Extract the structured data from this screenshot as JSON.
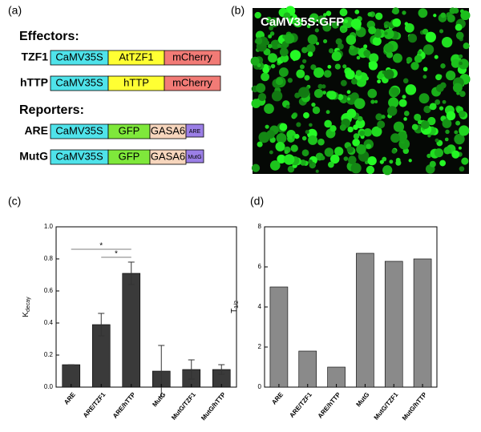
{
  "panel_a": {
    "label": "(a)",
    "groups": [
      {
        "title": "Effectors:",
        "constructs": [
          {
            "name": "TZF1",
            "segments": [
              {
                "text": "CaMV35S",
                "color": "#4fe3ea"
              },
              {
                "text": "AtTZF1",
                "color": "#ffff33"
              },
              {
                "text": "mCherry",
                "color": "#f27b76"
              }
            ]
          },
          {
            "name": "hTTP",
            "segments": [
              {
                "text": "CaMV35S",
                "color": "#4fe3ea"
              },
              {
                "text": "hTTP",
                "color": "#ffff33"
              },
              {
                "text": "mCherry",
                "color": "#f27b76"
              }
            ]
          }
        ]
      },
      {
        "title": "Reporters:",
        "constructs": [
          {
            "name": "ARE",
            "segments": [
              {
                "text": "CaMV35S",
                "color": "#4fe3ea"
              },
              {
                "text": "GFP",
                "color": "#7fe83b"
              },
              {
                "text": "GASA6",
                "color": "#f7d6bd"
              },
              {
                "text": "ARE",
                "color": "#9b7fe6"
              }
            ]
          },
          {
            "name": "MutG",
            "segments": [
              {
                "text": "CaMV35S",
                "color": "#4fe3ea"
              },
              {
                "text": "GFP",
                "color": "#7fe83b"
              },
              {
                "text": "GASA6",
                "color": "#f7d6bd"
              },
              {
                "text": "MutG",
                "color": "#9b7fe6"
              }
            ]
          }
        ]
      }
    ]
  },
  "panel_b": {
    "label": "(b)",
    "caption": "CaMV35S:GFP"
  },
  "chart_data": [
    {
      "type": "bar",
      "label": "(c)",
      "ylabel": "K",
      "ylabel_sub": "decay",
      "categories": [
        "ARE",
        "ARE/TZF1",
        "ARE/hTTP",
        "MutG",
        "MutG/TZF1",
        "MutG/hTTP"
      ],
      "values": [
        0.14,
        0.39,
        0.71,
        0.1,
        0.11,
        0.11
      ],
      "errors": [
        0.0,
        0.07,
        0.07,
        0.16,
        0.06,
        0.03
      ],
      "color": "#3a3a3a",
      "ylim": [
        0,
        1
      ],
      "yticks": [
        {
          "value": 0,
          "label": "0.0"
        },
        0.2,
        0.4,
        0.6,
        0.8,
        {
          "value": 1,
          "label": "1.0"
        }
      ],
      "significance": [
        {
          "label": "*",
          "between": [
            "ARE",
            "ARE/hTTP"
          ]
        },
        {
          "label": "*",
          "between": [
            "ARE/TZF1",
            "ARE/hTTP"
          ]
        }
      ]
    },
    {
      "type": "bar",
      "label": "(d)",
      "ylabel": "T",
      "ylabel_sub": "1/2",
      "categories": [
        "ARE",
        "ARE/TZF1",
        "ARE/hTTP",
        "MutG",
        "MutG/TZF1",
        "MutG/hTTP"
      ],
      "values": [
        5.0,
        1.8,
        1.0,
        6.68,
        6.28,
        6.4
      ],
      "color": "#8a8a8a",
      "ylim": [
        0,
        8
      ],
      "yticks": [
        0,
        2,
        4,
        6,
        8
      ]
    }
  ]
}
